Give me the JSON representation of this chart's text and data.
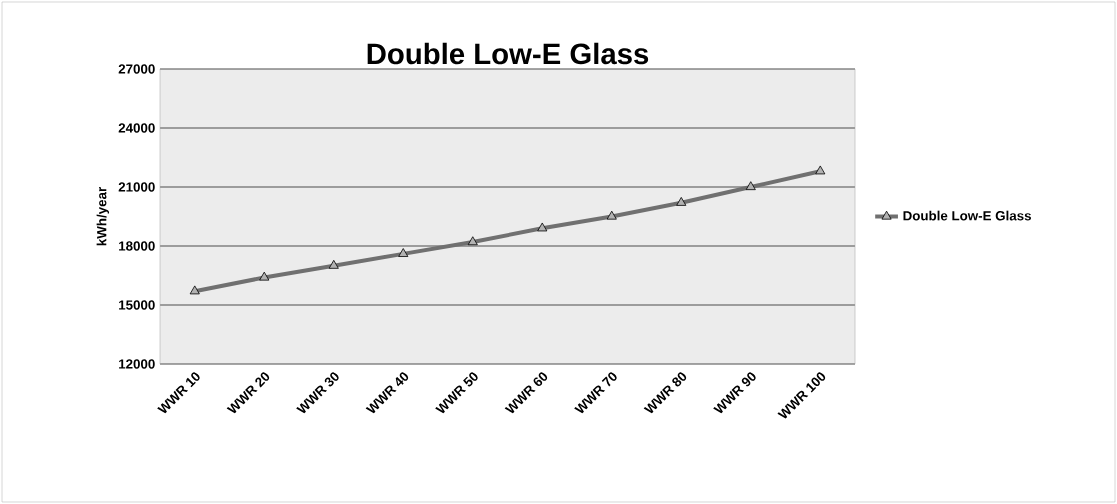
{
  "chart_data": {
    "type": "line",
    "title": "Double Low-E Glass",
    "ylabel": "kWh/year",
    "categories": [
      "WWR 10",
      "WWR 20",
      "WWR 30",
      "WWR 40",
      "WWR 50",
      "WWR 60",
      "WWR 70",
      "WWR 80",
      "WWR 90",
      "WWR 100"
    ],
    "series": [
      {
        "name": "Double Low-E Glass",
        "color": "#707070",
        "values": [
          15700,
          16400,
          17000,
          17600,
          18200,
          18900,
          19500,
          20200,
          21000,
          21800
        ]
      }
    ],
    "ylim": [
      12000,
      27000
    ],
    "yticks": [
      12000,
      15000,
      18000,
      21000,
      24000,
      27000
    ],
    "grid": "y",
    "legend": "right",
    "marker": "triangle",
    "line_style": "solid"
  }
}
